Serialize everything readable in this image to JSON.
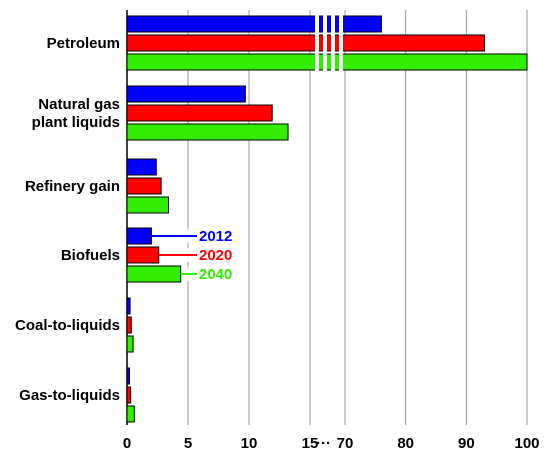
{
  "chart_data": {
    "type": "bar",
    "orientation": "horizontal",
    "categories": [
      [
        "Petroleum"
      ],
      [
        "Natural gas",
        "plant liquids"
      ],
      [
        "Refinery gain"
      ],
      [
        "Biofuels"
      ],
      [
        "Coal-to-liquids"
      ],
      [
        "Gas-to-liquids"
      ]
    ],
    "series": [
      {
        "name": "2012",
        "color": "#0000ff",
        "values": [
          76,
          9.7,
          2.4,
          2.0,
          0.25,
          0.15
        ]
      },
      {
        "name": "2020",
        "color": "#ff0000",
        "values": [
          93,
          11.9,
          2.8,
          2.6,
          0.35,
          0.3
        ]
      },
      {
        "name": "2040",
        "color": "#33ee00",
        "values": [
          100,
          13.2,
          3.4,
          4.4,
          0.5,
          0.6
        ]
      }
    ],
    "axis_break": {
      "from": 15,
      "to": 70
    },
    "xticks": [
      {
        "value": 0,
        "label": "0"
      },
      {
        "value": 5,
        "label": "5"
      },
      {
        "value": 10,
        "label": "10"
      },
      {
        "value": 15,
        "label": "15"
      },
      {
        "value": 70,
        "label": "70"
      },
      {
        "value": 80,
        "label": "80"
      },
      {
        "value": 90,
        "label": "90"
      },
      {
        "value": 100,
        "label": "100"
      }
    ],
    "break_marker": "···",
    "grid": true,
    "legend_placement": "inline, next to Biofuels bars",
    "title": "",
    "xlabel": "",
    "ylabel": ""
  }
}
